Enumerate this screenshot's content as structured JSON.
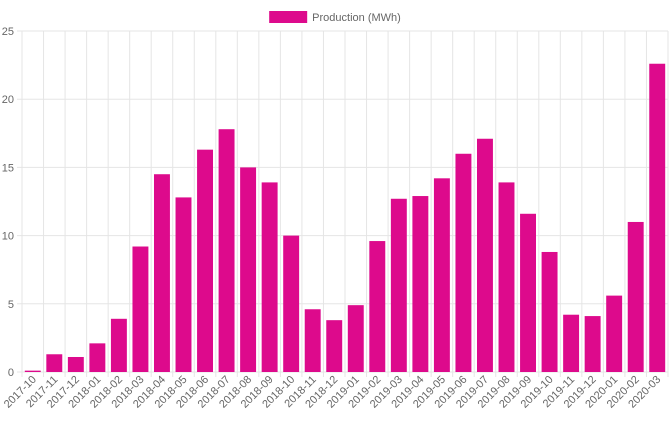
{
  "chart_data": {
    "type": "bar",
    "legend": {
      "label": "Production (MWh)",
      "placement": "top-center"
    },
    "categories": [
      "2017-10",
      "2017-11",
      "2017-12",
      "2018-01",
      "2018-02",
      "2018-03",
      "2018-04",
      "2018-05",
      "2018-06",
      "2018-07",
      "2018-08",
      "2018-09",
      "2018-10",
      "2018-11",
      "2018-12",
      "2019-01",
      "2019-02",
      "2019-03",
      "2019-04",
      "2019-05",
      "2019-06",
      "2019-07",
      "2019-08",
      "2019-09",
      "2019-10",
      "2019-11",
      "2019-12",
      "2020-01",
      "2020-02",
      "2020-03"
    ],
    "series": [
      {
        "name": "Production (MWh)",
        "color": "#dd0a8c",
        "values": [
          0.1,
          1.3,
          1.1,
          2.1,
          3.9,
          9.2,
          14.5,
          12.8,
          16.3,
          17.8,
          15.0,
          13.9,
          10.0,
          4.6,
          3.8,
          4.9,
          9.6,
          12.7,
          12.9,
          14.2,
          16.0,
          17.1,
          13.9,
          11.6,
          8.8,
          4.2,
          4.1,
          5.6,
          11.0,
          22.6
        ]
      }
    ],
    "ylim": [
      0,
      25
    ],
    "yticks": [
      0,
      5,
      10,
      15,
      20,
      25
    ],
    "grid": true
  }
}
